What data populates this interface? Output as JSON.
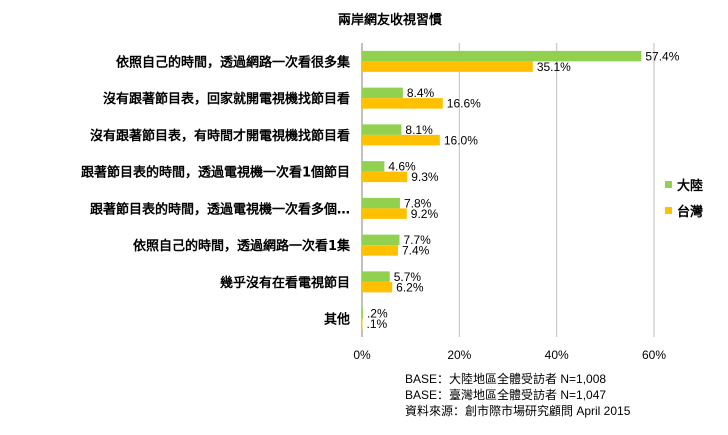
{
  "chart_data": {
    "type": "bar",
    "orientation": "horizontal",
    "title": "兩岸網友收視習慣",
    "categories": [
      "依照自己的時間，透過網路一次看很多集",
      "沒有跟著節目表，回家就開電視機找節目看",
      "沒有跟著節目表，有時間才開電視機找節目看",
      "跟著節目表的時間，透過電視機一次看1個節目",
      "跟著節目表的時間，透過電視機一次看多個…",
      "依照自己的時間，透過網路一次看1集",
      "幾乎沒有在看電視節目",
      "其他"
    ],
    "series": [
      {
        "name": "大陸",
        "color": "#92D050",
        "values": [
          57.4,
          8.4,
          8.1,
          4.6,
          7.8,
          7.7,
          5.7,
          0.2
        ],
        "labels": [
          "57.4%",
          "8.4%",
          "8.1%",
          "4.6%",
          "7.8%",
          "7.7%",
          "5.7%",
          ".2%"
        ]
      },
      {
        "name": "台灣",
        "color": "#FFC000",
        "values": [
          35.1,
          16.6,
          16.0,
          9.3,
          9.2,
          7.4,
          6.2,
          0.1
        ],
        "labels": [
          "35.1%",
          "16.6%",
          "16.0%",
          "9.3%",
          "9.2%",
          "7.4%",
          "6.2%",
          ".1%"
        ]
      }
    ],
    "xlim": [
      0,
      60
    ],
    "xticks": [
      0,
      20,
      40,
      60
    ],
    "xtick_labels": [
      "0%",
      "20%",
      "40%",
      "60%"
    ],
    "grid": true,
    "legend": "right"
  },
  "notes": [
    "BASE：大陸地區全體受訪者 N=1,008",
    "BASE：臺灣地區全體受訪者 N=1,047",
    "資料來源：創市際市場研究顧問 April 2015"
  ]
}
